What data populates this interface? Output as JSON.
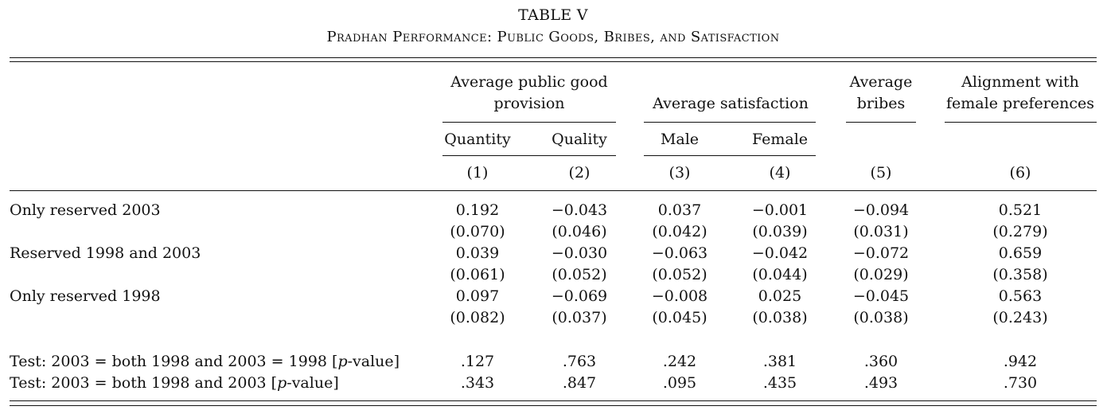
{
  "table_number": "TABLE V",
  "caption": "Pradhan Performance: Public Goods, Bribes, and Satisfaction",
  "header": {
    "group_public_goods": "Average public good provision",
    "group_satisfaction": "Average satisfaction",
    "group_bribes": "Average bribes",
    "group_alignment": "Alignment with female preferences",
    "sub_quantity": "Quantity",
    "sub_quality": "Quality",
    "sub_male": "Male",
    "sub_female": "Female",
    "col_numbers": [
      "(1)",
      "(2)",
      "(3)",
      "(4)",
      "(5)",
      "(6)"
    ]
  },
  "rows": [
    {
      "label": "Only reserved 2003",
      "coef": [
        "0.192",
        "−0.043",
        "0.037",
        "−0.001",
        "−0.094",
        "0.521"
      ],
      "se": [
        "(0.070)",
        "(0.046)",
        "(0.042)",
        "(0.039)",
        "(0.031)",
        "(0.279)"
      ]
    },
    {
      "label": "Reserved 1998 and 2003",
      "coef": [
        "0.039",
        "−0.030",
        "−0.063",
        "−0.042",
        "−0.072",
        "0.659"
      ],
      "se": [
        "(0.061)",
        "(0.052)",
        "(0.052)",
        "(0.044)",
        "(0.029)",
        "(0.358)"
      ]
    },
    {
      "label": "Only reserved 1998",
      "coef": [
        "0.097",
        "−0.069",
        "−0.008",
        "0.025",
        "−0.045",
        "0.563"
      ],
      "se": [
        "(0.082)",
        "(0.037)",
        "(0.045)",
        "(0.038)",
        "(0.038)",
        "(0.243)"
      ]
    }
  ],
  "tests": [
    {
      "label_pre": "Test: 2003 = both 1998 and 2003 = 1998 [",
      "label_italic": "p",
      "label_post": "-value]",
      "values": [
        ".127",
        ".763",
        ".242",
        ".381",
        ".360",
        ".942"
      ]
    },
    {
      "label_pre": "Test: 2003 = both 1998 and 2003 [",
      "label_italic": "p",
      "label_post": "-value]",
      "values": [
        ".343",
        ".847",
        ".095",
        ".435",
        ".493",
        ".730"
      ]
    }
  ]
}
